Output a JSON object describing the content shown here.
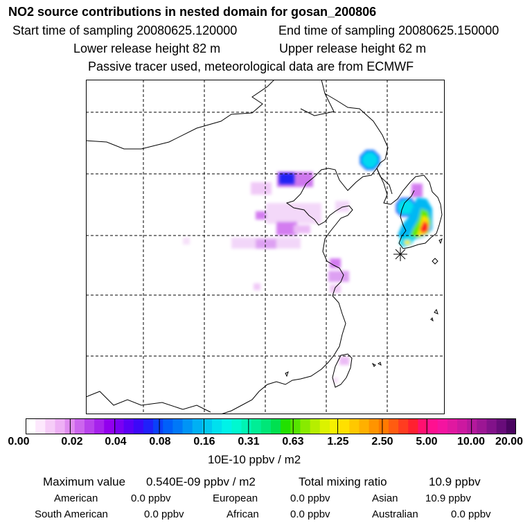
{
  "title": "NO2 source contributions in nested domain for gosan_200806",
  "sampling": {
    "start": "Start time of sampling 20080625.120000",
    "end": "End time of sampling 20080625.150000"
  },
  "release": {
    "lower": "Lower release height   82 m",
    "upper": "Upper release height   62 m"
  },
  "note": "Passive tracer used, meteorological data are from ECMWF",
  "colorbar": {
    "ticks": [
      "0.00",
      "0.02",
      "0.04",
      "0.08",
      "0.16",
      "0.31",
      "0.63",
      "1.25",
      "2.50",
      "5.00",
      "10.00",
      "20.00"
    ],
    "units": "10E-10 ppbv / m2",
    "colors": [
      "#ffffff",
      "#fde8fd",
      "#f6ccf8",
      "#eeb0f5",
      "#e08cf0",
      "#cc66ee",
      "#b842ec",
      "#a622ec",
      "#9200ee",
      "#7a00f2",
      "#5a00f6",
      "#3c08f8",
      "#2020fa",
      "#0a40fa",
      "#0060fa",
      "#0078f8",
      "#0094f6",
      "#00b0f4",
      "#00c8f0",
      "#00e0ee",
      "#00f2e8",
      "#00f8d0",
      "#00f4b4",
      "#00ee96",
      "#00e678",
      "#00e050",
      "#22e000",
      "#56e400",
      "#88ea00",
      "#b6ee00",
      "#dcf200",
      "#f6f000",
      "#ffe000",
      "#ffc800",
      "#ffb000",
      "#ff9400",
      "#ff7a00",
      "#ff5c10",
      "#ff3c20",
      "#ff2030",
      "#ff1070",
      "#ff1090",
      "#f414a0",
      "#e018a0",
      "#cc18a0",
      "#b4189c",
      "#9c1694",
      "#82128a",
      "#680c7a",
      "#4a0460"
    ]
  },
  "stats": {
    "max_label": "Maximum value",
    "max_value": "0.540E-09 ppbv / m2",
    "total_label": "Total mixing ratio",
    "total_value": "10.9 ppbv"
  },
  "regions": [
    {
      "name": "American",
      "value": "0.0 ppbv"
    },
    {
      "name": "European",
      "value": "0.0 ppbv"
    },
    {
      "name": "Asian",
      "value": "10.9 ppbv"
    },
    {
      "name": "South American",
      "value": "0.0 ppbv"
    },
    {
      "name": "African",
      "value": "0.0 ppbv"
    },
    {
      "name": "Australian",
      "value": "0.0 ppbv"
    }
  ],
  "colors": {
    "grid": "#000000",
    "background": "#ffffff"
  }
}
